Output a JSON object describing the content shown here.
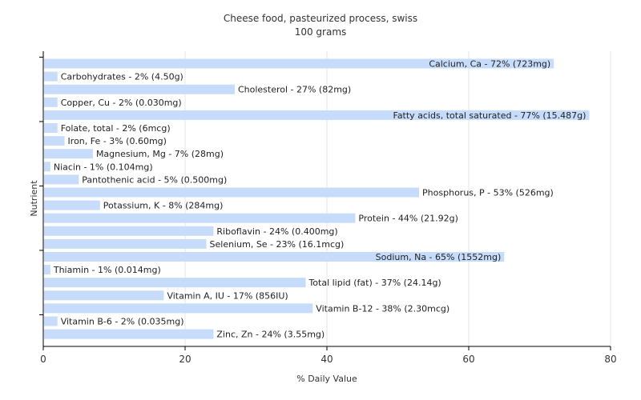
{
  "chart_data": {
    "type": "bar",
    "orientation": "horizontal",
    "title": "Cheese food, pasteurized process, swiss",
    "subtitle": "100 grams",
    "xlabel": "% Daily Value",
    "ylabel": "Nutrient",
    "xlim": [
      0,
      80
    ],
    "xticks": [
      "0",
      "20",
      "40",
      "60",
      "80"
    ],
    "grid": true,
    "bar_color": "#c6dcfa",
    "categories": [
      "Calcium, Ca",
      "Carbohydrates",
      "Cholesterol",
      "Copper, Cu",
      "Fatty acids, total saturated",
      "Folate, total",
      "Iron, Fe",
      "Magnesium, Mg",
      "Niacin",
      "Pantothenic acid",
      "Phosphorus, P",
      "Potassium, K",
      "Protein",
      "Riboflavin",
      "Selenium, Se",
      "Sodium, Na",
      "Thiamin",
      "Total lipid (fat)",
      "Vitamin A, IU",
      "Vitamin B-12",
      "Vitamin B-6",
      "Zinc, Zn"
    ],
    "values": [
      72,
      2,
      27,
      2,
      77,
      2,
      3,
      7,
      1,
      5,
      53,
      8,
      44,
      24,
      23,
      65,
      1,
      37,
      17,
      38,
      2,
      24
    ],
    "labels": [
      "Calcium, Ca - 72% (723mg)",
      "Carbohydrates - 2% (4.50g)",
      "Cholesterol - 27% (82mg)",
      "Copper, Cu - 2% (0.030mg)",
      "Fatty acids, total saturated - 77% (15.487g)",
      "Folate, total - 2% (6mcg)",
      "Iron, Fe - 3% (0.60mg)",
      "Magnesium, Mg - 7% (28mg)",
      "Niacin - 1% (0.104mg)",
      "Pantothenic acid - 5% (0.500mg)",
      "Phosphorus, P - 53% (526mg)",
      "Potassium, K - 8% (284mg)",
      "Protein - 44% (21.92g)",
      "Riboflavin - 24% (0.400mg)",
      "Selenium, Se - 23% (16.1mcg)",
      "Sodium, Na - 65% (1552mg)",
      "Thiamin - 1% (0.014mg)",
      "Total lipid (fat) - 37% (24.14g)",
      "Vitamin A, IU - 17% (856IU)",
      "Vitamin B-12 - 38% (2.30mcg)",
      "Vitamin B-6 - 2% (0.035mg)",
      "Zinc, Zn - 24% (3.55mg)"
    ]
  }
}
